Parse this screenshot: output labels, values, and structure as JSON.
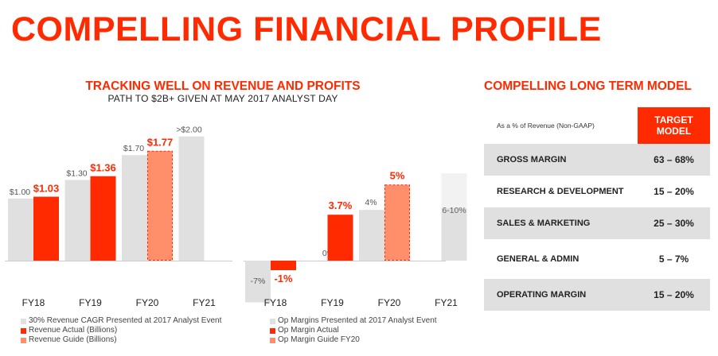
{
  "title": "COMPELLING FINANCIAL PROFILE",
  "left_section": {
    "title": "TRACKING WELL ON REVENUE AND PROFITS",
    "subtitle": "PATH TO $2B+ GIVEN AT MAY 2017 ANALYST DAY"
  },
  "colors": {
    "accent": "#ff2a00",
    "presented": "#e0e0e0",
    "actual": "#ff2a00",
    "guide": "#ff8f6a",
    "guide_border": "#ff2a00",
    "light": "#f2f2f2"
  },
  "chart_data": [
    {
      "type": "bar",
      "categories": [
        "FY18",
        "FY19",
        "FY20",
        "FY21"
      ],
      "ylim": [
        0,
        2.15
      ],
      "series": [
        {
          "name": "30% Revenue CAGR Presented at 2017 Analyst Event",
          "values": [
            1.0,
            1.3,
            1.7,
            2.0
          ],
          "labels": [
            "$1.00",
            "$1.30",
            "$1.70",
            ">$2.00"
          ]
        },
        {
          "name": "Revenue Actual (Billions)",
          "values": [
            1.03,
            1.36,
            null,
            null
          ],
          "labels": [
            "$1.03",
            "$1.36",
            "",
            ""
          ]
        },
        {
          "name": "Revenue Guide (Billions)",
          "values": [
            null,
            null,
            1.77,
            null
          ],
          "labels": [
            "",
            "",
            "$1.77",
            ""
          ]
        }
      ]
    },
    {
      "type": "bar",
      "categories": [
        "FY18",
        "FY19",
        "FY20",
        "FY21"
      ],
      "ylim": [
        -7.5,
        10
      ],
      "series": [
        {
          "name": "Op Margins Presented at  2017 Analyst Event",
          "values": [
            -7,
            0,
            4,
            6
          ],
          "labels": [
            "-7%",
            "0%",
            "4%",
            "6-10%"
          ],
          "range_top": [
            null,
            null,
            null,
            10
          ]
        },
        {
          "name": "Op Margin Actual",
          "values": [
            -1,
            3.7,
            null,
            null
          ],
          "labels": [
            "-1%",
            "3.7%",
            "",
            ""
          ]
        },
        {
          "name": "Op Margin Guide FY20",
          "values": [
            null,
            null,
            5,
            null
          ],
          "labels": [
            "",
            "",
            "5%",
            ""
          ]
        }
      ]
    }
  ],
  "legend_left": [
    {
      "label": "30% Revenue CAGR Presented at 2017 Analyst Event",
      "color": "#e0e0e0"
    },
    {
      "label": "Revenue Actual (Billions)",
      "color": "#ff2a00"
    },
    {
      "label": "Revenue Guide (Billions)",
      "color": "#ff8f6a"
    }
  ],
  "legend_right": [
    {
      "label": "Op Margins Presented at  2017 Analyst Event",
      "color": "#e0e0e0"
    },
    {
      "label": "Op Margin Actual",
      "color": "#ff2a00"
    },
    {
      "label": "Op Margin Guide FY20",
      "color": "#ff8f6a"
    }
  ],
  "model": {
    "title": "COMPELLING LONG TERM MODEL",
    "header_label": "As a % of Revenue (Non-GAAP)",
    "target_line1": "TARGET",
    "target_line2": "MODEL",
    "rows": [
      {
        "label": "GROSS MARGIN",
        "value": "63 – 68%"
      },
      {
        "label": "RESEARCH & DEVELOPMENT",
        "value": "15 – 20%"
      },
      {
        "label": "SALES & MARKETING",
        "value": "25 – 30%"
      },
      {
        "label": "GENERAL & ADMIN",
        "value": "5 – 7%"
      },
      {
        "label": "OPERATING MARGIN",
        "value": "15 – 20%"
      }
    ]
  }
}
